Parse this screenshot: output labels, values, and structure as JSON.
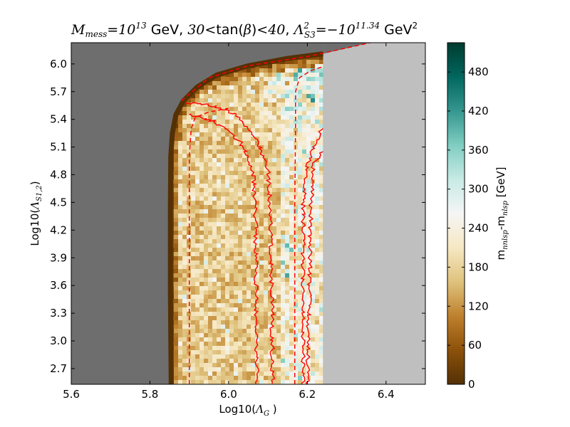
{
  "chart_data": {
    "type": "heatmap",
    "title": {
      "mess_var": "M",
      "mess_sub": "mess",
      "mess_eq": "=10",
      "mess_exp": "13",
      "gev1": " GeV, ",
      "tanb_lo": "30",
      "lt": "<",
      "tanb_text": "tan(",
      "beta": "β",
      "tanb_close": ")",
      "tanb_hi": "40",
      "comma": ", ",
      "lambda": "Λ",
      "lambda_sup": "2",
      "lambda_sub": "S3",
      "lambda_eq": "=−10",
      "lambda_exp": "11.34",
      "gev2": " GeV",
      "gev2_exp": "2"
    },
    "xlabel": {
      "prefix": "Log10(",
      "sym": "Λ",
      "sub": "G",
      "suffix": " )"
    },
    "ylabel": {
      "prefix": "Log10(",
      "sym": "Λ",
      "sub": "S1,2",
      "suffix": ")"
    },
    "colorbar_label": {
      "m1": "m",
      "s1": "nnlsp",
      "mid": "-m",
      "s2": "nlsp",
      "unit": " [GeV]"
    },
    "xlim": [
      5.6,
      6.5
    ],
    "ylim": [
      2.53,
      6.23
    ],
    "xticks": [
      "5.6",
      "5.8",
      "6.0",
      "6.2",
      "6.4"
    ],
    "yticks": [
      "2.7",
      "3.0",
      "3.3",
      "3.6",
      "3.9",
      "4.2",
      "4.5",
      "4.8",
      "5.1",
      "5.4",
      "5.7",
      "6.0"
    ],
    "colorbar": {
      "range": [
        0,
        525
      ],
      "ticks": [
        "0",
        "60",
        "120",
        "180",
        "240",
        "300",
        "360",
        "420",
        "480"
      ]
    },
    "colors": {
      "excluded_dark": "#6e6e6e",
      "excluded_light": "#bfbfbf",
      "contour": "#ff0000",
      "cmap": [
        "#543005",
        "#8c510a",
        "#bf812d",
        "#dfc27d",
        "#f6e8c3",
        "#f5f5f5",
        "#c7eae5",
        "#80cdc1",
        "#35978f",
        "#01665e",
        "#003c30"
      ]
    },
    "regions": {
      "left_boundary": [
        [
          5.854,
          2.53
        ],
        [
          5.852,
          3.5
        ],
        [
          5.852,
          4.5
        ],
        [
          5.853,
          5.0
        ],
        [
          5.857,
          5.25
        ],
        [
          5.866,
          5.45
        ],
        [
          5.885,
          5.6
        ],
        [
          5.92,
          5.75
        ],
        [
          5.97,
          5.88
        ],
        [
          6.05,
          5.98
        ],
        [
          6.15,
          6.06
        ],
        [
          6.24,
          6.11
        ]
      ],
      "right_boundary_x": 6.24
    },
    "contours_dashed": [
      [
        [
          5.9,
          2.53
        ],
        [
          5.9,
          4.2
        ],
        [
          5.9,
          5.0
        ],
        [
          5.905,
          5.3
        ],
        [
          5.915,
          5.42
        ],
        [
          5.95,
          5.48
        ],
        [
          6.0,
          5.52
        ]
      ],
      [
        [
          6.168,
          2.53
        ],
        [
          6.168,
          4.5
        ],
        [
          6.17,
          5.3
        ],
        [
          6.17,
          5.7
        ],
        [
          6.18,
          5.85
        ],
        [
          6.21,
          5.93
        ],
        [
          6.24,
          5.97
        ]
      ],
      [
        [
          5.88,
          5.6
        ],
        [
          5.95,
          5.85
        ],
        [
          6.05,
          5.98
        ],
        [
          6.2,
          6.08
        ],
        [
          6.36,
          6.23
        ]
      ]
    ],
    "contours_solid": [
      [
        [
          6.072,
          2.53
        ],
        [
          6.07,
          3.5
        ],
        [
          6.068,
          4.5
        ],
        [
          6.063,
          4.8
        ],
        [
          6.05,
          5.0
        ],
        [
          6.03,
          5.15
        ],
        [
          6.0,
          5.28
        ],
        [
          5.96,
          5.38
        ],
        [
          5.93,
          5.42
        ],
        [
          5.9,
          5.45
        ]
      ],
      [
        [
          6.112,
          2.53
        ],
        [
          6.11,
          3.5
        ],
        [
          6.105,
          4.5
        ],
        [
          6.1,
          4.85
        ],
        [
          6.08,
          5.1
        ],
        [
          6.05,
          5.3
        ],
        [
          6.02,
          5.45
        ],
        [
          5.98,
          5.52
        ],
        [
          5.93,
          5.57
        ],
        [
          5.89,
          5.58
        ]
      ],
      [
        [
          6.19,
          2.53
        ],
        [
          6.188,
          3.5
        ],
        [
          6.19,
          4.5
        ],
        [
          6.2,
          4.9
        ],
        [
          6.22,
          5.15
        ],
        [
          6.24,
          5.3
        ]
      ],
      [
        [
          6.2,
          2.53
        ],
        [
          6.205,
          3.5
        ],
        [
          6.21,
          4.5
        ],
        [
          6.215,
          4.9
        ],
        [
          6.24,
          5.05
        ]
      ]
    ]
  }
}
